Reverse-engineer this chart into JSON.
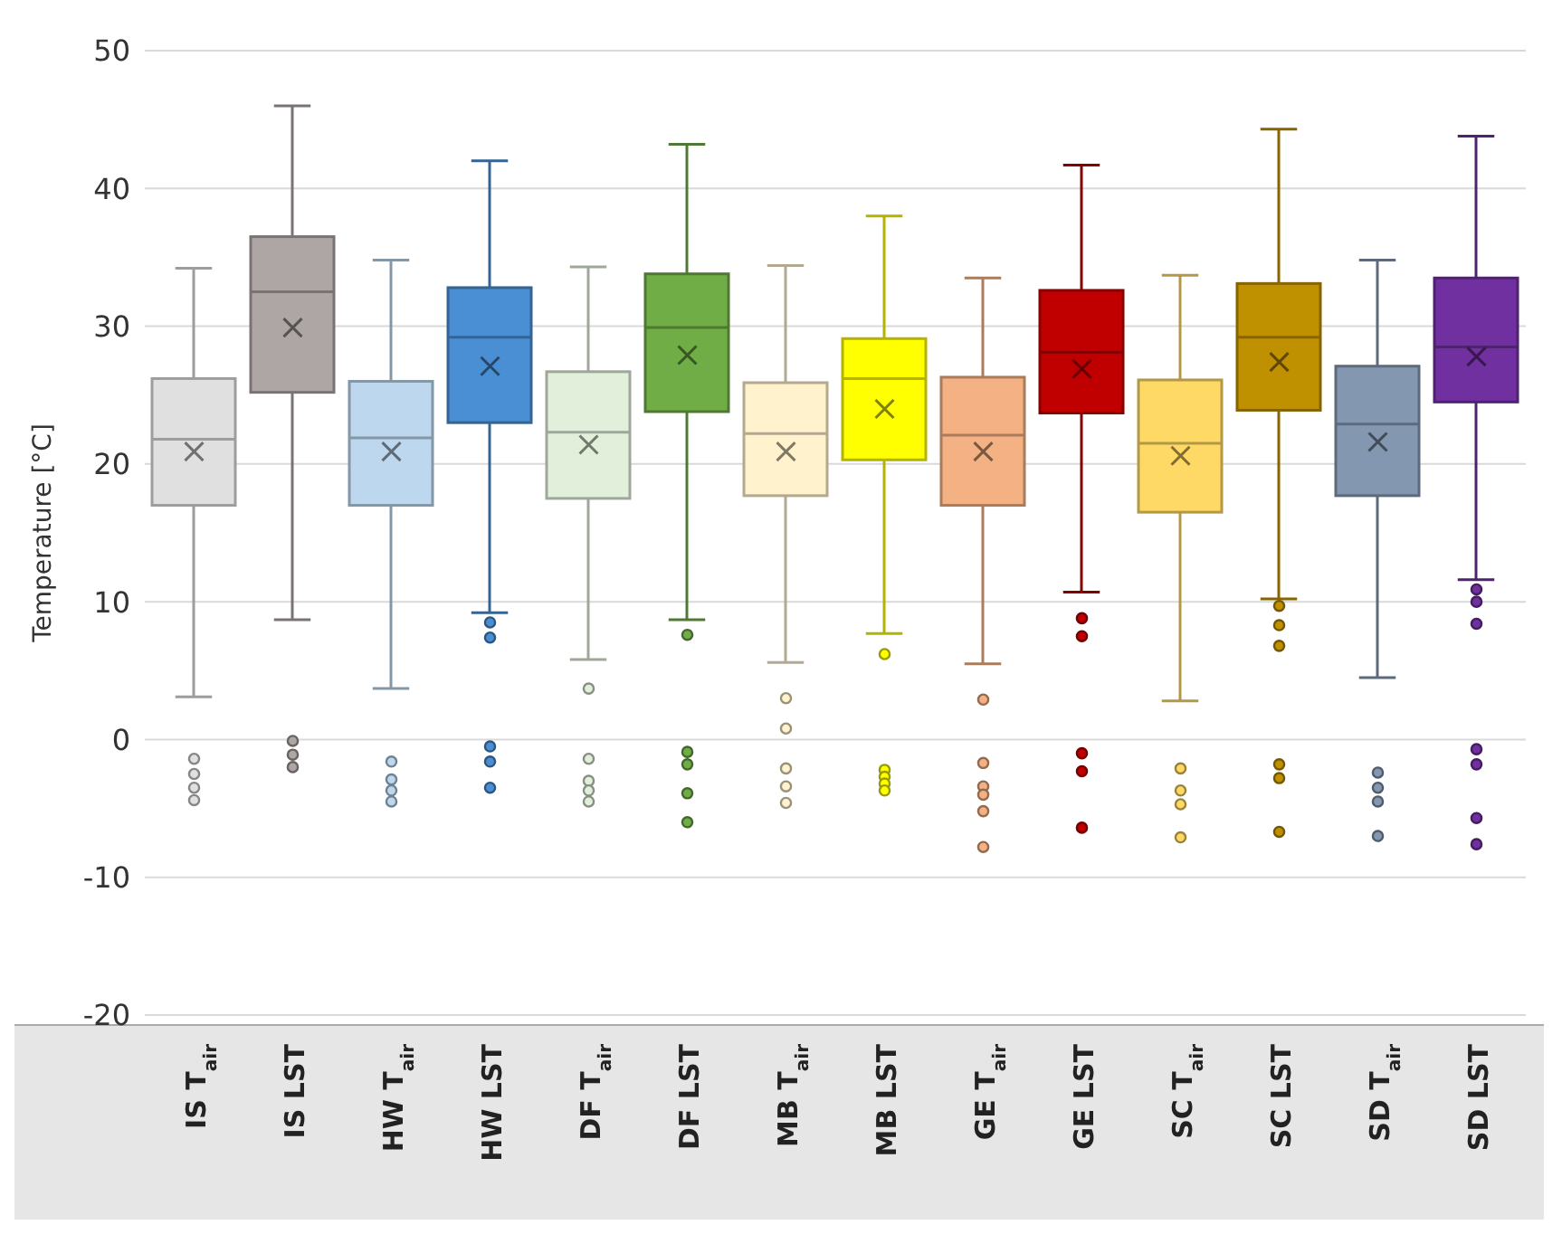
{
  "chart_data": {
    "type": "box",
    "ylabel": "Temperature [°C]",
    "categories": [
      "IS T$_{air}$",
      "IS LST",
      "HW T$_{air}$",
      "HW LST",
      "DF T$_{air}$",
      "DF LST",
      "MB T$_{air}$",
      "MB LST",
      "GE T$_{air}$",
      "GE LST",
      "SC T$_{air}$",
      "SC LST",
      "SD T$_{air}$",
      "SD LST"
    ],
    "colors": [
      "#e0e0e0",
      "#aea5a5",
      "#bdd7ee",
      "#4a8fd4",
      "#e2efda",
      "#70ad47",
      "#fff2cc",
      "#ffff00",
      "#f4b183",
      "#c00000",
      "#ffd966",
      "#bf9000",
      "#8497b0",
      "#7030a0"
    ],
    "boxes": [
      {
        "low": 3.1,
        "q1": 17.0,
        "median": 21.8,
        "q3": 26.2,
        "high": 34.2,
        "mean": 20.9,
        "outliers": [
          -1.4,
          -2.5,
          -3.5,
          -4.4
        ]
      },
      {
        "low": 8.7,
        "q1": 25.2,
        "median": 32.5,
        "q3": 36.5,
        "high": 46.0,
        "mean": 29.9,
        "outliers": [
          -0.1,
          -1.1,
          -2.0
        ]
      },
      {
        "low": 3.7,
        "q1": 17.0,
        "median": 21.9,
        "q3": 26.0,
        "high": 34.8,
        "mean": 20.9,
        "outliers": [
          -1.6,
          -2.9,
          -3.7,
          -4.5
        ]
      },
      {
        "low": 9.2,
        "q1": 23.0,
        "median": 29.2,
        "q3": 32.8,
        "high": 42.0,
        "mean": 27.1,
        "outliers": [
          8.5,
          7.4,
          -0.5,
          -1.6,
          -3.5
        ]
      },
      {
        "low": 5.8,
        "q1": 17.5,
        "median": 22.3,
        "q3": 26.7,
        "high": 34.3,
        "mean": 21.4,
        "outliers": [
          3.7,
          -1.4,
          -3.0,
          -3.7,
          -4.5
        ]
      },
      {
        "low": 8.7,
        "q1": 23.8,
        "median": 29.9,
        "q3": 33.8,
        "high": 43.2,
        "mean": 27.9,
        "outliers": [
          7.6,
          -0.9,
          -1.8,
          -3.9,
          -6.0
        ]
      },
      {
        "low": 5.6,
        "q1": 17.7,
        "median": 22.2,
        "q3": 25.9,
        "high": 34.4,
        "mean": 20.9,
        "outliers": [
          3.0,
          0.8,
          -2.1,
          -3.4,
          -4.6
        ]
      },
      {
        "low": 7.7,
        "q1": 20.3,
        "median": 26.2,
        "q3": 29.1,
        "high": 38.0,
        "mean": 24.0,
        "outliers": [
          6.2,
          -2.2,
          -2.7,
          -3.2,
          -3.7
        ]
      },
      {
        "low": 5.5,
        "q1": 17.0,
        "median": 22.1,
        "q3": 26.3,
        "high": 33.5,
        "mean": 20.9,
        "outliers": [
          2.9,
          -1.7,
          -3.4,
          -4.0,
          -5.2,
          -7.8
        ]
      },
      {
        "low": 10.7,
        "q1": 23.7,
        "median": 28.1,
        "q3": 32.6,
        "high": 41.7,
        "mean": 26.9,
        "outliers": [
          8.8,
          7.5,
          -1.0,
          -2.3,
          -6.4
        ]
      },
      {
        "low": 2.8,
        "q1": 16.5,
        "median": 21.5,
        "q3": 26.1,
        "high": 33.7,
        "mean": 20.6,
        "outliers": [
          -2.1,
          -3.7,
          -4.7,
          -7.1
        ]
      },
      {
        "low": 10.2,
        "q1": 23.9,
        "median": 29.2,
        "q3": 33.1,
        "high": 44.3,
        "mean": 27.4,
        "outliers": [
          9.7,
          8.3,
          6.8,
          -1.8,
          -2.8,
          -6.7
        ]
      },
      {
        "low": 4.5,
        "q1": 17.7,
        "median": 22.9,
        "q3": 27.1,
        "high": 34.8,
        "mean": 21.6,
        "outliers": [
          -2.4,
          -3.5,
          -4.5,
          -7.0
        ]
      },
      {
        "low": 11.6,
        "q1": 24.5,
        "median": 28.5,
        "q3": 33.5,
        "high": 43.8,
        "mean": 27.8,
        "outliers": [
          10.9,
          10.0,
          8.4,
          -0.7,
          -1.8,
          -5.7,
          -7.6
        ]
      }
    ],
    "ylim": [
      -20,
      50
    ],
    "yticks": [
      -20,
      -10,
      0,
      10,
      20,
      30,
      40,
      50
    ],
    "grid": "y"
  }
}
